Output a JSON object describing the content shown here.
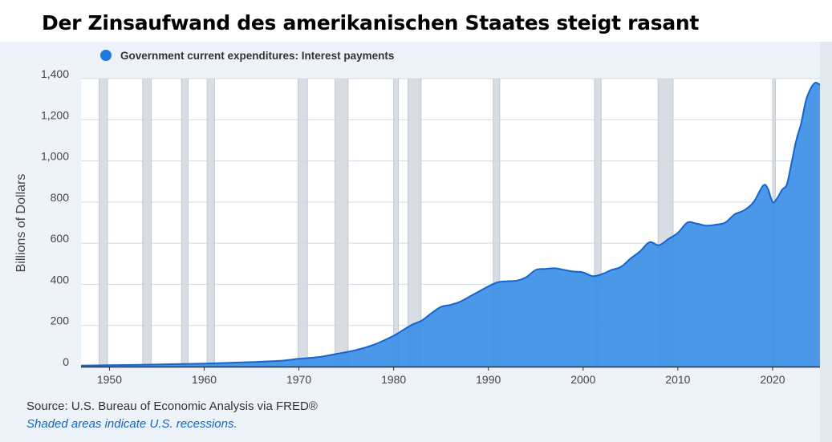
{
  "title": "Der Zinsaufwand des amerikanischen Staates steigt rasant",
  "legend": {
    "label": "Government current expenditures: Interest payments",
    "color": "#1f77e0"
  },
  "source": "Source: U.S. Bureau of Economic Analysis via FRED®",
  "note": "Shaded areas indicate U.S. recessions.",
  "chart_data": {
    "type": "area",
    "ylabel": "Billions of Dollars",
    "xlim": [
      1947,
      2025
    ],
    "ylim": [
      0,
      1400
    ],
    "x_ticks": [
      1950,
      1960,
      1970,
      1980,
      1990,
      2000,
      2010,
      2020
    ],
    "y_ticks": [
      0,
      200,
      400,
      600,
      800,
      1000,
      1200,
      1400
    ],
    "y_tick_labels": [
      "0",
      "200",
      "400",
      "600",
      "800",
      "1,000",
      "1,200",
      "1,400"
    ],
    "grid": true,
    "legend_position": "top-left",
    "fill_color": "#3d8fe6",
    "line_color": "#1565d0",
    "recession_color": "#d8dde3",
    "recessions": [
      [
        1948.9,
        1949.8
      ],
      [
        1953.5,
        1954.4
      ],
      [
        1957.6,
        1958.3
      ],
      [
        1960.3,
        1961.1
      ],
      [
        1969.9,
        1970.9
      ],
      [
        1973.8,
        1975.2
      ],
      [
        1980.0,
        1980.5
      ],
      [
        1981.5,
        1982.9
      ],
      [
        1990.5,
        1991.2
      ],
      [
        2001.2,
        2001.9
      ],
      [
        2007.9,
        2009.5
      ],
      [
        2020.0,
        2020.3
      ]
    ],
    "series": [
      {
        "name": "Government current expenditures: Interest payments",
        "x": [
          1947,
          1950,
          1955,
          1960,
          1965,
          1968,
          1970,
          1972,
          1974,
          1976,
          1978,
          1980,
          1981,
          1982,
          1983,
          1984,
          1985,
          1986,
          1987,
          1988,
          1989,
          1990,
          1991,
          1992,
          1993,
          1994,
          1995,
          1996,
          1997,
          1998,
          1999,
          2000,
          2001,
          2002,
          2003,
          2004,
          2005,
          2006,
          2007,
          2008,
          2009,
          2010,
          2011,
          2012,
          2013,
          2014,
          2015,
          2016,
          2017,
          2018,
          2019,
          2019.5,
          2020,
          2020.5,
          2021,
          2021.5,
          2022,
          2022.5,
          2023,
          2023.5,
          2024,
          2024.5,
          2025
        ],
        "values": [
          5,
          7,
          10,
          15,
          22,
          28,
          38,
          46,
          62,
          80,
          108,
          150,
          178,
          205,
          225,
          260,
          290,
          300,
          315,
          340,
          365,
          390,
          410,
          415,
          418,
          435,
          470,
          475,
          478,
          470,
          462,
          458,
          440,
          450,
          470,
          485,
          525,
          560,
          605,
          590,
          620,
          650,
          700,
          695,
          685,
          690,
          700,
          740,
          760,
          800,
          880,
          865,
          800,
          820,
          860,
          885,
          990,
          1100,
          1180,
          1290,
          1350,
          1380,
          1370
        ]
      }
    ]
  }
}
